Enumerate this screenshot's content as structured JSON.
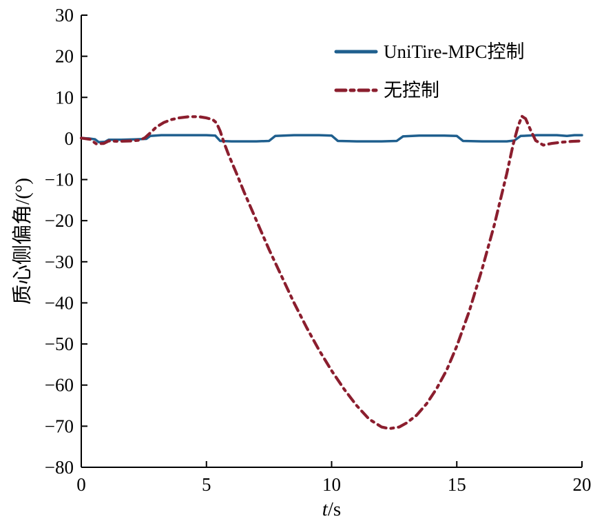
{
  "figure": {
    "background_color": "#ffffff",
    "axis_color": "#000000"
  },
  "chart_data": {
    "type": "line",
    "title": "",
    "xlabel": "t/s",
    "ylabel": "质心侧偏角/(°)",
    "xlim": [
      0,
      20
    ],
    "ylim": [
      -80,
      30
    ],
    "xticks": [
      0,
      5,
      10,
      15,
      20
    ],
    "yticks": [
      30,
      20,
      10,
      0,
      -10,
      -20,
      -30,
      -40,
      -50,
      -60,
      -70,
      -80
    ],
    "grid": false,
    "legend_position": "upper-center-inside",
    "series": [
      {
        "name": "UniTire-MPC控制",
        "color": "#1f5f8e",
        "line_style": "solid",
        "line_width": 3.5,
        "points": [
          [
            0,
            0.1
          ],
          [
            0.3,
            0
          ],
          [
            0.55,
            -0.2
          ],
          [
            0.7,
            -0.9
          ],
          [
            0.95,
            -0.8
          ],
          [
            1.1,
            -0.3
          ],
          [
            1.6,
            -0.3
          ],
          [
            2.2,
            -0.2
          ],
          [
            2.6,
            -0.1
          ],
          [
            2.75,
            0.6
          ],
          [
            3.2,
            0.8
          ],
          [
            4.0,
            0.8
          ],
          [
            5.0,
            0.8
          ],
          [
            5.35,
            0.7
          ],
          [
            5.55,
            -0.6
          ],
          [
            6.0,
            -0.7
          ],
          [
            7.0,
            -0.7
          ],
          [
            7.5,
            -0.6
          ],
          [
            7.75,
            0.6
          ],
          [
            8.5,
            0.8
          ],
          [
            9.5,
            0.8
          ],
          [
            10.0,
            0.7
          ],
          [
            10.25,
            -0.6
          ],
          [
            11.0,
            -0.7
          ],
          [
            12.0,
            -0.7
          ],
          [
            12.6,
            -0.6
          ],
          [
            12.85,
            0.5
          ],
          [
            13.5,
            0.7
          ],
          [
            14.5,
            0.7
          ],
          [
            15.0,
            0.6
          ],
          [
            15.25,
            -0.6
          ],
          [
            16.0,
            -0.7
          ],
          [
            17.0,
            -0.7
          ],
          [
            17.3,
            -0.5
          ],
          [
            17.55,
            0.6
          ],
          [
            18.2,
            0.8
          ],
          [
            19.0,
            0.8
          ],
          [
            19.4,
            0.6
          ],
          [
            19.7,
            0.8
          ],
          [
            20,
            0.8
          ]
        ]
      },
      {
        "name": "无控制",
        "color": "#8b1e2e",
        "line_style": "dash-dot",
        "line_width": 4.2,
        "points": [
          [
            0,
            0.1
          ],
          [
            0.35,
            -0.2
          ],
          [
            0.6,
            -1.3
          ],
          [
            0.9,
            -1.2
          ],
          [
            1.1,
            -0.6
          ],
          [
            1.5,
            -0.7
          ],
          [
            2.0,
            -0.6
          ],
          [
            2.35,
            -0.4
          ],
          [
            2.55,
            0.2
          ],
          [
            2.8,
            1.6
          ],
          [
            3.0,
            2.8
          ],
          [
            3.3,
            3.9
          ],
          [
            3.6,
            4.6
          ],
          [
            3.9,
            5.0
          ],
          [
            4.3,
            5.3
          ],
          [
            4.7,
            5.3
          ],
          [
            5.0,
            5.0
          ],
          [
            5.25,
            4.6
          ],
          [
            5.4,
            3.8
          ],
          [
            5.55,
            1.8
          ],
          [
            5.7,
            -1.0
          ],
          [
            5.9,
            -4.2
          ],
          [
            6.2,
            -8.5
          ],
          [
            6.5,
            -13.0
          ],
          [
            7.0,
            -20.0
          ],
          [
            7.5,
            -27.0
          ],
          [
            8.0,
            -33.5
          ],
          [
            8.5,
            -40.0
          ],
          [
            9.0,
            -46.0
          ],
          [
            9.5,
            -51.5
          ],
          [
            10.0,
            -56.5
          ],
          [
            10.5,
            -61.0
          ],
          [
            11.0,
            -65.0
          ],
          [
            11.5,
            -68.3
          ],
          [
            12.0,
            -70.2
          ],
          [
            12.3,
            -70.6
          ],
          [
            12.7,
            -70.2
          ],
          [
            13.0,
            -69.2
          ],
          [
            13.4,
            -67.3
          ],
          [
            13.8,
            -64.5
          ],
          [
            14.2,
            -60.8
          ],
          [
            14.6,
            -56.3
          ],
          [
            15.0,
            -50.5
          ],
          [
            15.5,
            -42.0
          ],
          [
            16.0,
            -32.0
          ],
          [
            16.5,
            -21.0
          ],
          [
            17.0,
            -8.5
          ],
          [
            17.25,
            -1.5
          ],
          [
            17.45,
            3.0
          ],
          [
            17.6,
            5.4
          ],
          [
            17.75,
            4.8
          ],
          [
            17.95,
            2.0
          ],
          [
            18.15,
            -0.5
          ],
          [
            18.45,
            -1.6
          ],
          [
            18.8,
            -1.2
          ],
          [
            19.2,
            -0.9
          ],
          [
            19.6,
            -0.7
          ],
          [
            20,
            -0.6
          ]
        ]
      }
    ]
  }
}
